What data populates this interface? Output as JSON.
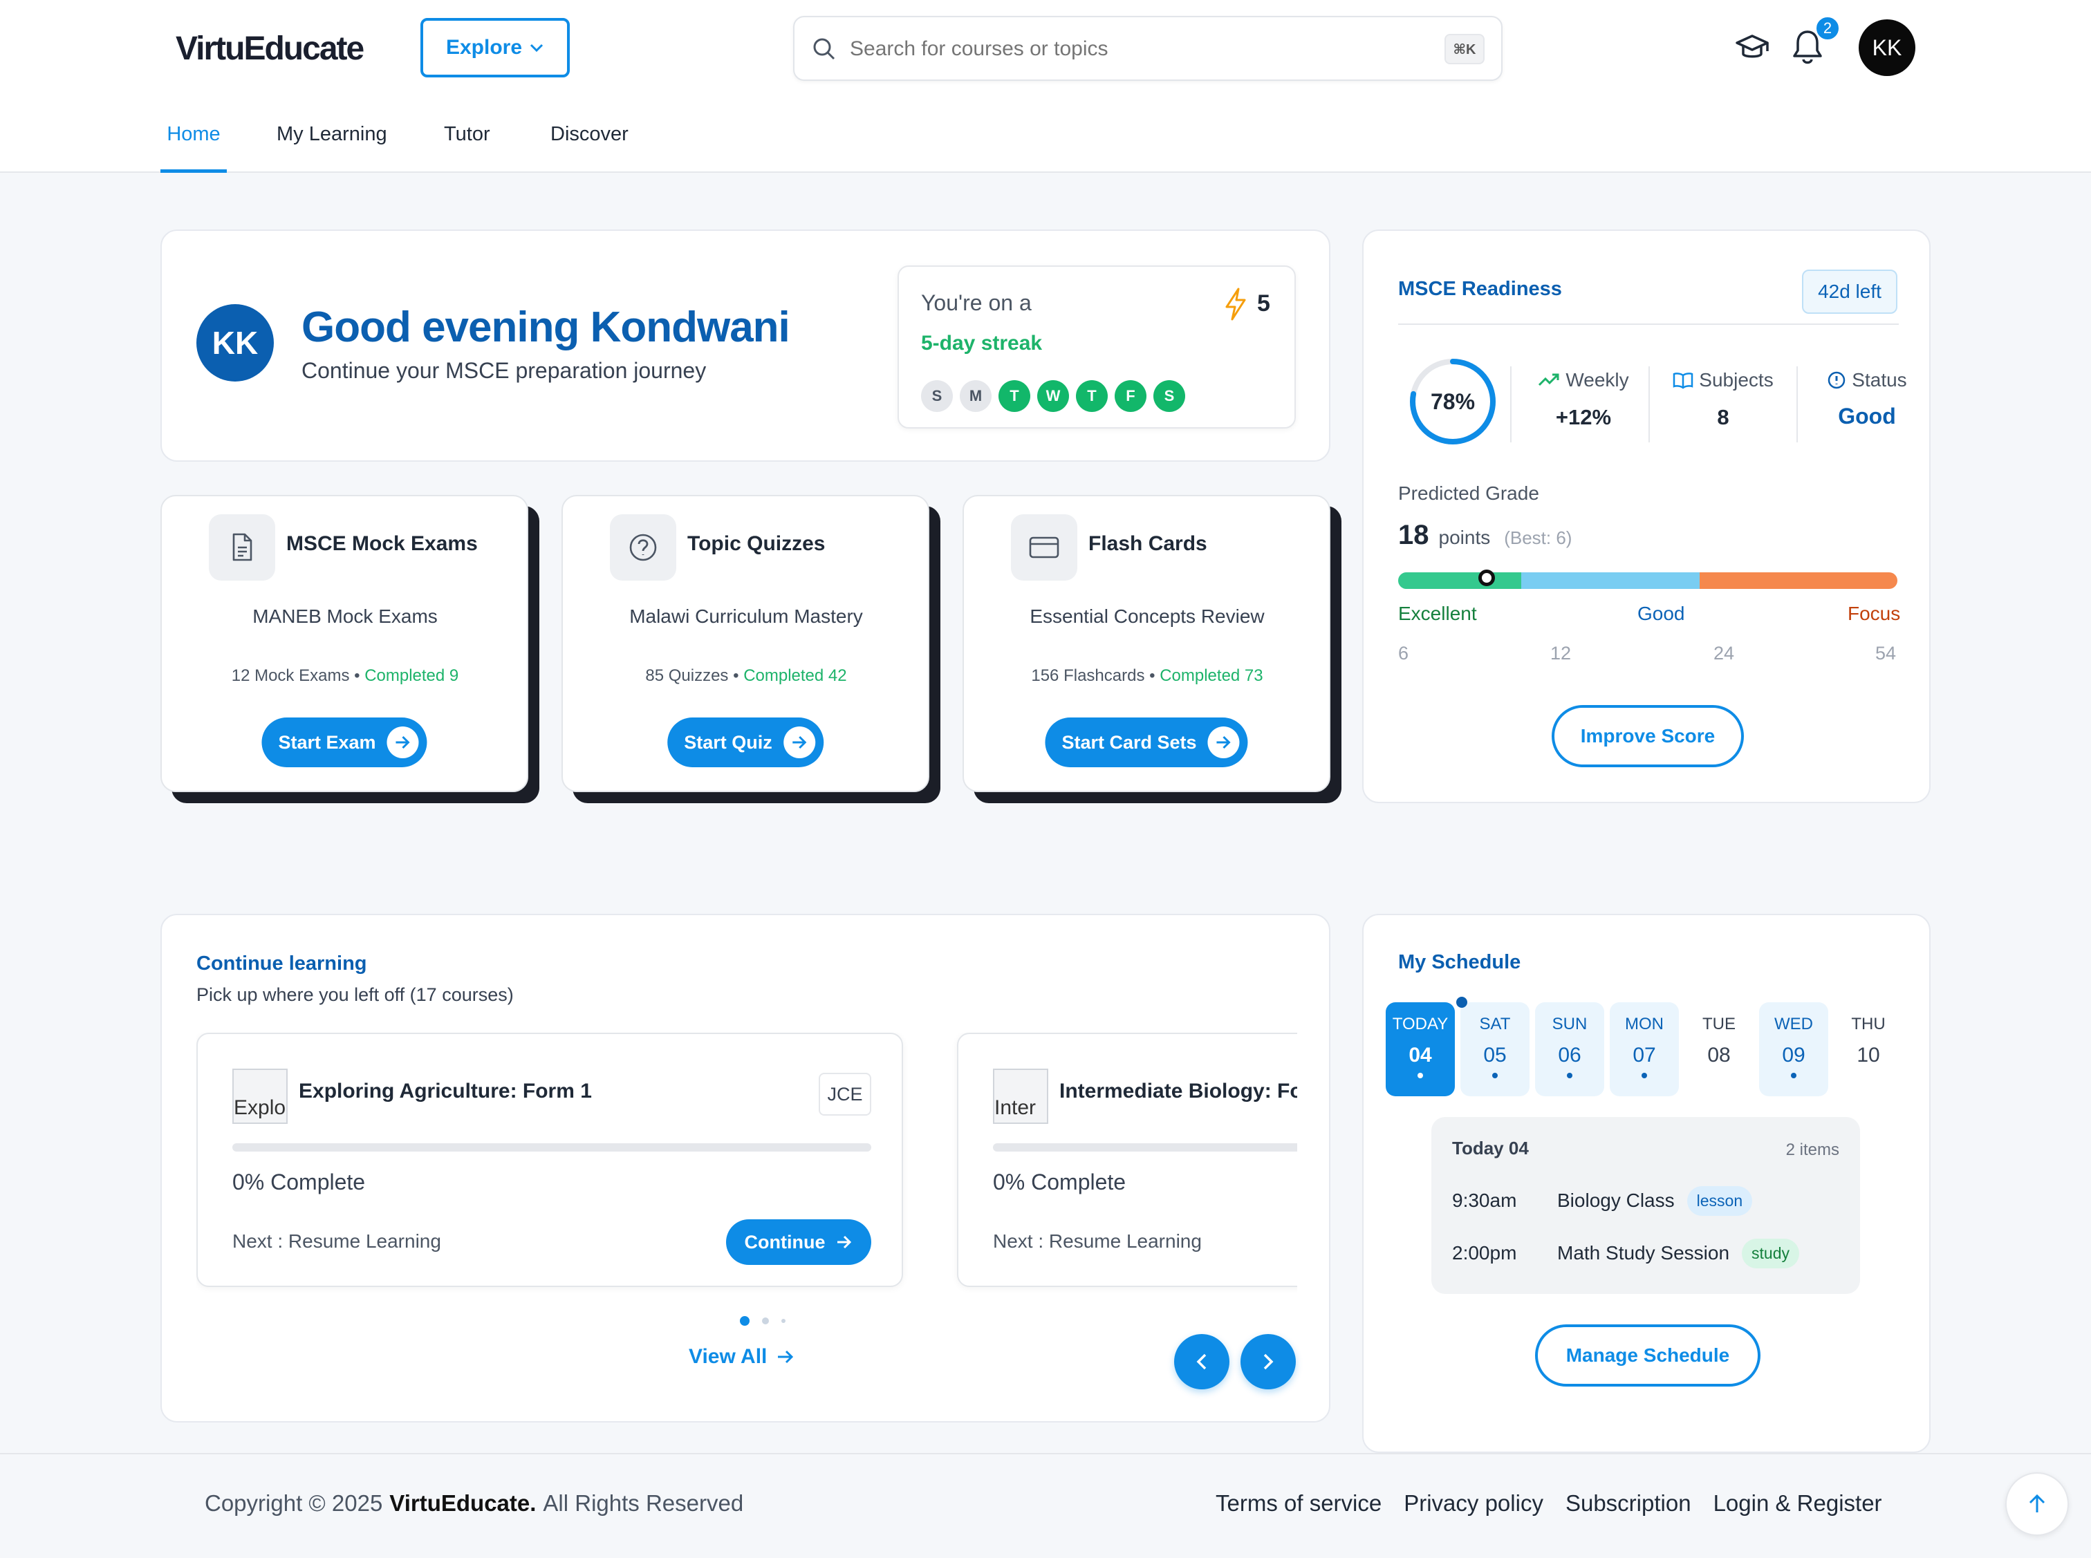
{
  "brand": {
    "name": "VirtuEducate"
  },
  "header": {
    "explore_label": "Explore",
    "search_placeholder": "Search for courses or topics",
    "search_shortcut": "⌘K",
    "notifications_count": "2",
    "avatar_initials": "KK"
  },
  "nav": {
    "tabs": [
      {
        "label": "Home",
        "active": true
      },
      {
        "label": "My Learning"
      },
      {
        "label": "Tutor"
      },
      {
        "label": "Discover"
      }
    ]
  },
  "greeting": {
    "avatar": "KK",
    "title": "Good evening Kondwani",
    "subtitle": "Continue your MSCE preparation journey"
  },
  "streak": {
    "prefix": "You're on a",
    "streak_text": "5-day streak",
    "count": "5",
    "days": [
      {
        "letter": "S",
        "done": false
      },
      {
        "letter": "M",
        "done": false
      },
      {
        "letter": "T",
        "done": true
      },
      {
        "letter": "W",
        "done": true
      },
      {
        "letter": "T",
        "done": true
      },
      {
        "letter": "F",
        "done": true
      },
      {
        "letter": "S",
        "done": true
      }
    ]
  },
  "quick": [
    {
      "title": "MSCE Mock Exams",
      "subtitle": "MANEB Mock Exams",
      "count": "12 Mock Exams",
      "completed": "Completed 9",
      "button": "Start Exam",
      "icon": "document-icon"
    },
    {
      "title": "Topic Quizzes",
      "subtitle": "Malawi Curriculum Mastery",
      "count": "85 Quizzes",
      "completed": "Completed 42",
      "button": "Start Quiz",
      "icon": "question-icon"
    },
    {
      "title": "Flash Cards",
      "subtitle": "Essential Concepts Review",
      "count": "156 Flashcards",
      "completed": "Completed 73",
      "button": "Start Card Sets",
      "icon": "card-icon"
    }
  ],
  "readiness": {
    "title": "MSCE Readiness",
    "days_left": "42d left",
    "percent_label": "78%",
    "percent_value": 78,
    "weekly_label": "Weekly",
    "weekly_value": "+12%",
    "subjects_label": "Subjects",
    "subjects_value": "8",
    "status_label": "Status",
    "status_value": "Good",
    "predicted_label": "Predicted Grade",
    "points": "18",
    "points_label": "points",
    "best": "(Best: 6)",
    "scale_labels": [
      "Excellent",
      "Good",
      "Focus"
    ],
    "scale_ticks": [
      "6",
      "12",
      "24",
      "54"
    ],
    "marker_value": 18,
    "improve_button": "Improve Score",
    "colors": {
      "excellent": "#34c98e",
      "good": "#79cdf2",
      "focus": "#f5884d"
    }
  },
  "continue": {
    "title": "Continue learning",
    "subtitle": "Pick up where you left off (17 courses)",
    "courses": [
      {
        "title": "Exploring Agriculture: Form 1",
        "img_alt": "Explo",
        "badge": "JCE",
        "progress_text": "0% Complete",
        "next": "Next : Resume Learning",
        "button": "Continue"
      },
      {
        "title": "Intermediate Biology: Fo",
        "img_alt": "Inter",
        "progress_text": "0% Complete",
        "next": "Next : Resume Learning"
      }
    ],
    "view_all": "View All"
  },
  "schedule": {
    "title": "My Schedule",
    "days": [
      {
        "name": "TODAY",
        "num": "04",
        "state": "active",
        "dot": true
      },
      {
        "name": "SAT",
        "num": "05",
        "state": "tint",
        "dot": true
      },
      {
        "name": "SUN",
        "num": "06",
        "state": "tint",
        "dot": true
      },
      {
        "name": "MON",
        "num": "07",
        "state": "tint",
        "dot": true
      },
      {
        "name": "TUE",
        "num": "08",
        "state": "plain",
        "dot": false
      },
      {
        "name": "WED",
        "num": "09",
        "state": "tint",
        "dot": true
      },
      {
        "name": "THU",
        "num": "10",
        "state": "plain",
        "dot": false
      }
    ],
    "today_label": "Today 04",
    "items_count": "2 items",
    "events": [
      {
        "time": "9:30am",
        "name": "Biology Class",
        "tag": "lesson"
      },
      {
        "time": "2:00pm",
        "name": "Math Study Session",
        "tag": "study"
      }
    ],
    "manage_button": "Manage Schedule"
  },
  "footer": {
    "copyright_pre": "Copyright © 2025",
    "brand": "VirtuEducate.",
    "copyright_post": "All Rights Reserved",
    "links": [
      "Terms of service",
      "Privacy policy",
      "Subscription",
      "Login & Register"
    ]
  }
}
